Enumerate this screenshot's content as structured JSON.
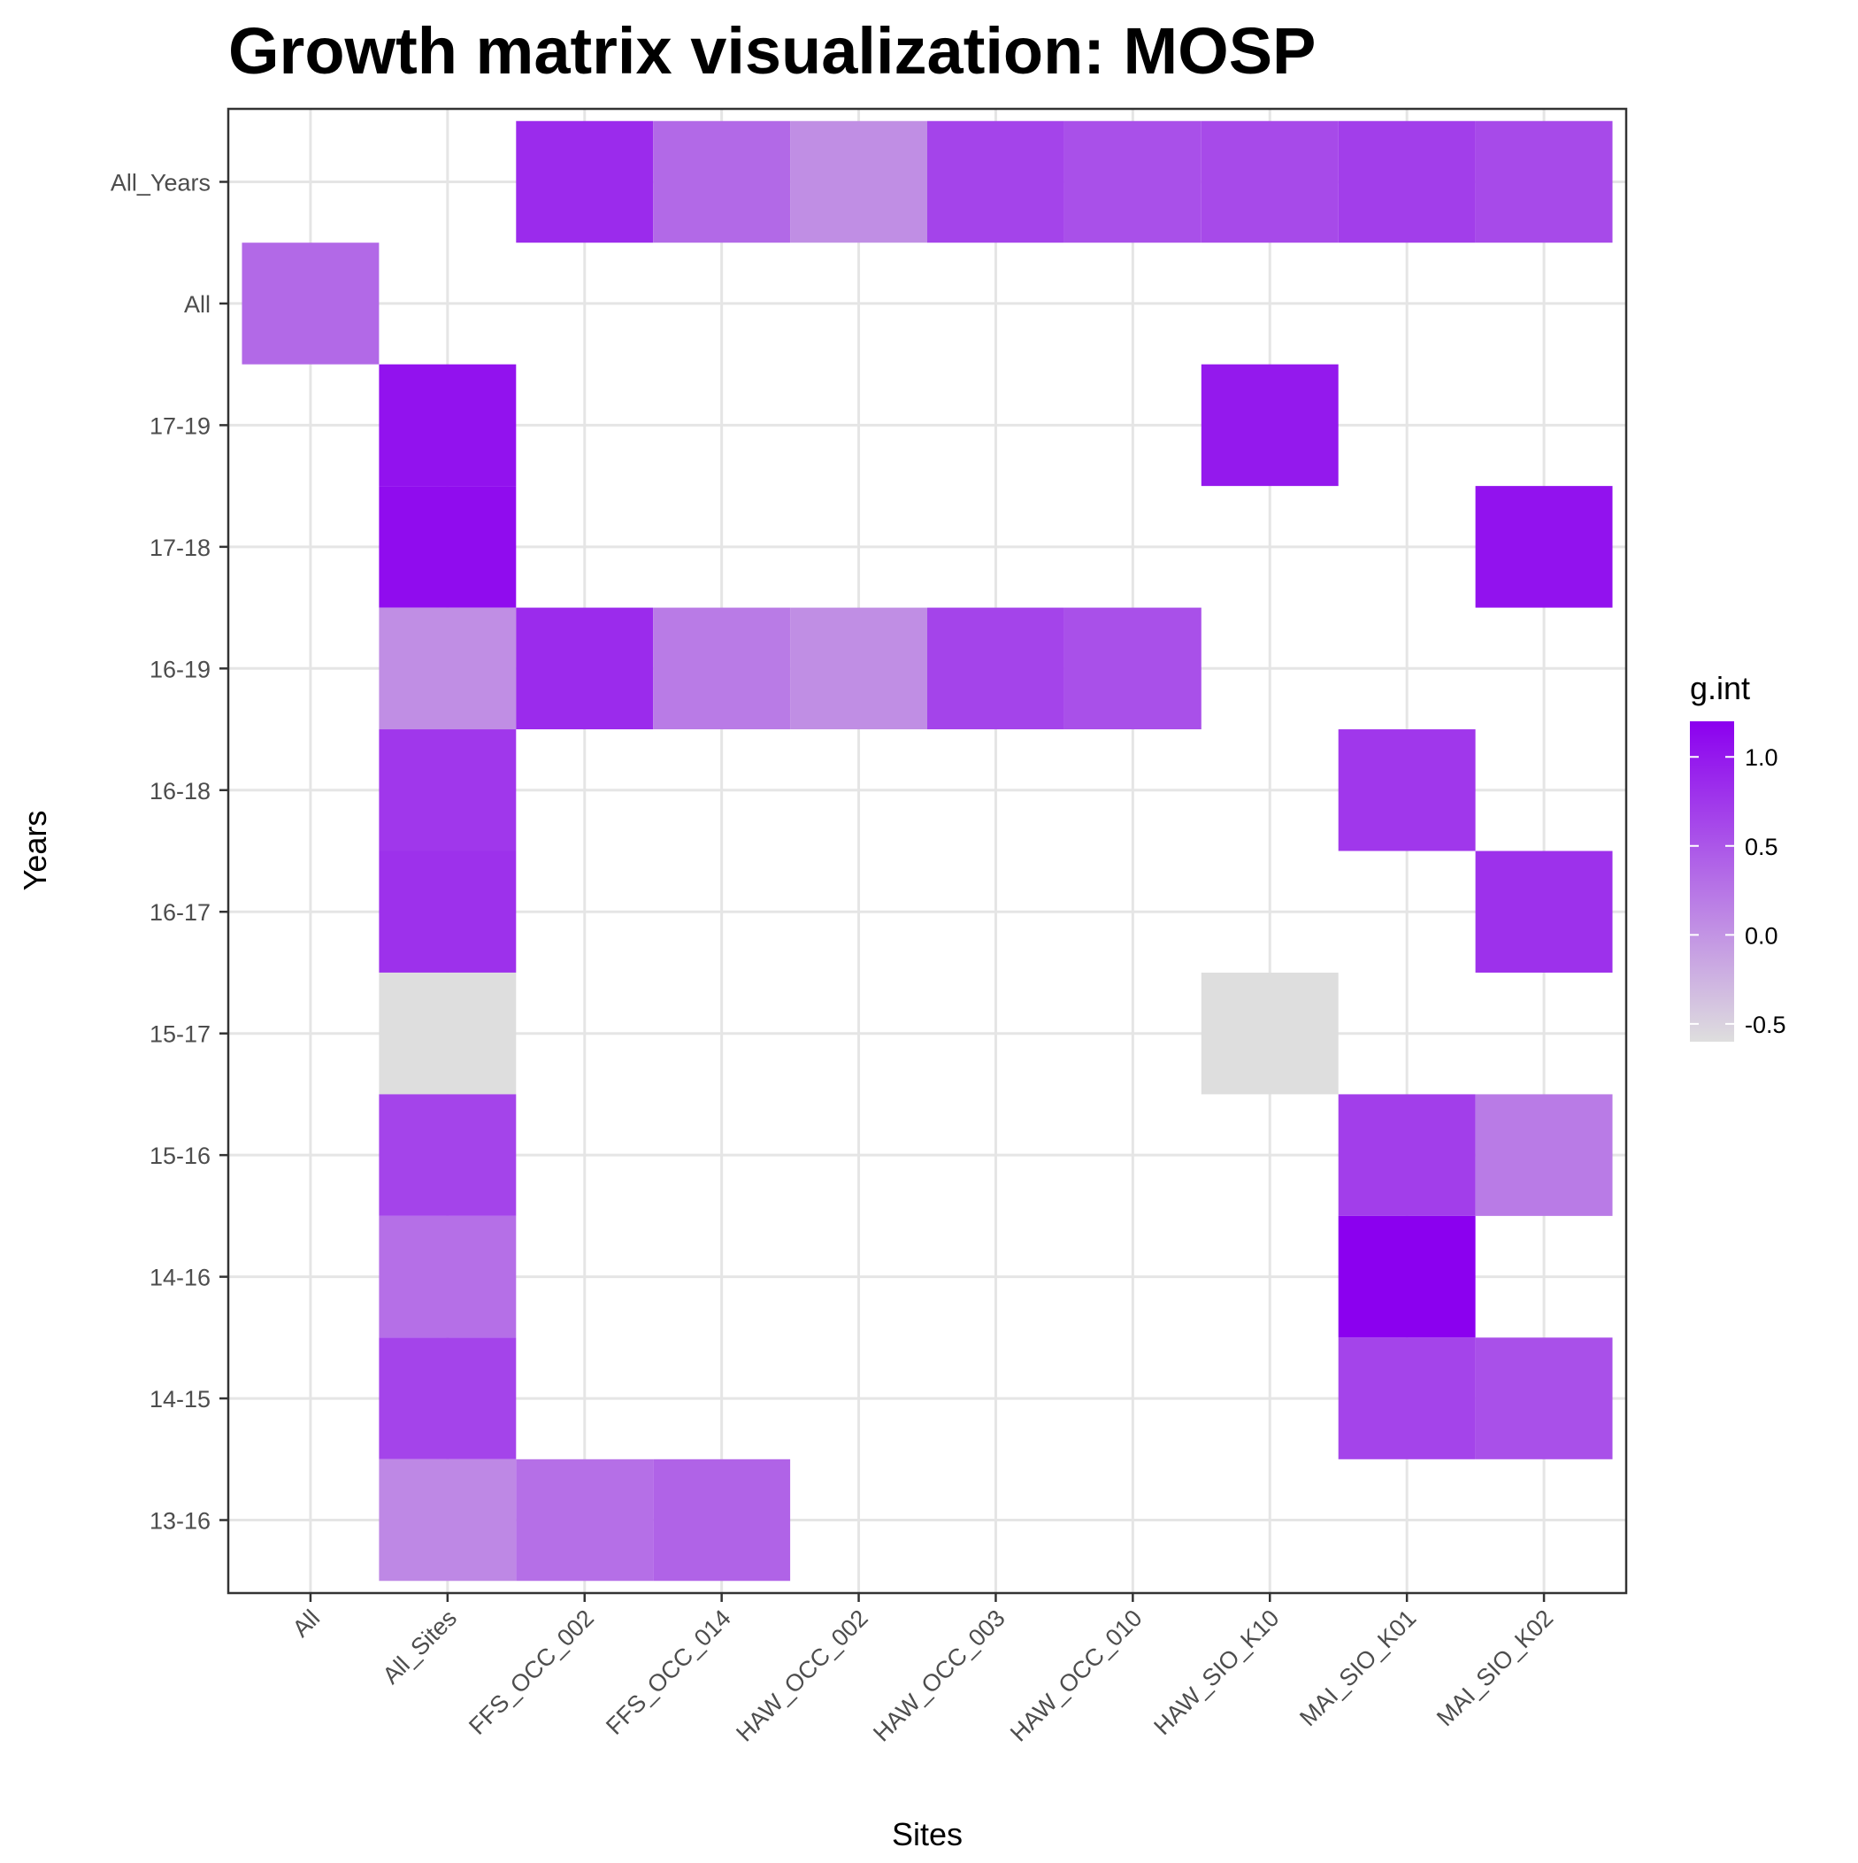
{
  "chart_data": {
    "type": "heatmap",
    "title": "Growth matrix visualization: MOSP",
    "xlabel": "Sites",
    "ylabel": "Years",
    "x_categories": [
      "All",
      "All_Sites",
      "FFS_OCC_002",
      "FFS_OCC_014",
      "HAW_OCC_002",
      "HAW_OCC_003",
      "HAW_OCC_010",
      "HAW_SIO_K10",
      "MAI_SIO_K01",
      "MAI_SIO_K02"
    ],
    "y_categories": [
      "13-16",
      "14-15",
      "14-16",
      "15-16",
      "15-17",
      "16-17",
      "16-18",
      "16-19",
      "17-18",
      "17-19",
      "All",
      "All_Years"
    ],
    "cells": [
      {
        "x": "FFS_OCC_002",
        "y": "All_Years",
        "value": 0.85
      },
      {
        "x": "FFS_OCC_014",
        "y": "All_Years",
        "value": 0.35
      },
      {
        "x": "HAW_OCC_002",
        "y": "All_Years",
        "value": 0.05
      },
      {
        "x": "HAW_OCC_003",
        "y": "All_Years",
        "value": 0.65
      },
      {
        "x": "HAW_OCC_010",
        "y": "All_Years",
        "value": 0.55
      },
      {
        "x": "HAW_SIO_K10",
        "y": "All_Years",
        "value": 0.6
      },
      {
        "x": "MAI_SIO_K01",
        "y": "All_Years",
        "value": 0.7
      },
      {
        "x": "MAI_SIO_K02",
        "y": "All_Years",
        "value": 0.6
      },
      {
        "x": "All",
        "y": "All",
        "value": 0.35
      },
      {
        "x": "All_Sites",
        "y": "17-19",
        "value": 1.05
      },
      {
        "x": "HAW_SIO_K10",
        "y": "17-19",
        "value": 1.0
      },
      {
        "x": "All_Sites",
        "y": "17-18",
        "value": 1.1
      },
      {
        "x": "MAI_SIO_K02",
        "y": "17-18",
        "value": 1.05
      },
      {
        "x": "All_Sites",
        "y": "16-19",
        "value": 0.05
      },
      {
        "x": "FFS_OCC_002",
        "y": "16-19",
        "value": 0.85
      },
      {
        "x": "FFS_OCC_014",
        "y": "16-19",
        "value": 0.2
      },
      {
        "x": "HAW_OCC_002",
        "y": "16-19",
        "value": 0.05
      },
      {
        "x": "HAW_OCC_003",
        "y": "16-19",
        "value": 0.65
      },
      {
        "x": "HAW_OCC_010",
        "y": "16-19",
        "value": 0.55
      },
      {
        "x": "All_Sites",
        "y": "16-18",
        "value": 0.75
      },
      {
        "x": "MAI_SIO_K01",
        "y": "16-18",
        "value": 0.75
      },
      {
        "x": "All_Sites",
        "y": "16-17",
        "value": 0.8
      },
      {
        "x": "MAI_SIO_K02",
        "y": "16-17",
        "value": 0.8
      },
      {
        "x": "All_Sites",
        "y": "15-17",
        "value": -0.6
      },
      {
        "x": "HAW_SIO_K10",
        "y": "15-17",
        "value": -0.6
      },
      {
        "x": "All_Sites",
        "y": "15-16",
        "value": 0.65
      },
      {
        "x": "MAI_SIO_K01",
        "y": "15-16",
        "value": 0.7
      },
      {
        "x": "MAI_SIO_K02",
        "y": "15-16",
        "value": 0.2
      },
      {
        "x": "All_Sites",
        "y": "14-16",
        "value": 0.3
      },
      {
        "x": "MAI_SIO_K01",
        "y": "14-16",
        "value": 1.2
      },
      {
        "x": "All_Sites",
        "y": "14-15",
        "value": 0.65
      },
      {
        "x": "MAI_SIO_K01",
        "y": "14-15",
        "value": 0.65
      },
      {
        "x": "MAI_SIO_K02",
        "y": "14-15",
        "value": 0.55
      },
      {
        "x": "All_Sites",
        "y": "13-16",
        "value": 0.1
      },
      {
        "x": "FFS_OCC_002",
        "y": "13-16",
        "value": 0.3
      },
      {
        "x": "FFS_OCC_014",
        "y": "13-16",
        "value": 0.4
      }
    ],
    "legend": {
      "title": "g.int",
      "position": "right",
      "ticks": [
        "1.0",
        "0.5",
        "0.0",
        "-0.5"
      ],
      "tick_values": [
        1.0,
        0.5,
        0.0,
        -0.5
      ],
      "range": [
        -0.6,
        1.2
      ],
      "color_low": "#dedede",
      "color_high": "#8b00ef"
    },
    "grid": true
  }
}
